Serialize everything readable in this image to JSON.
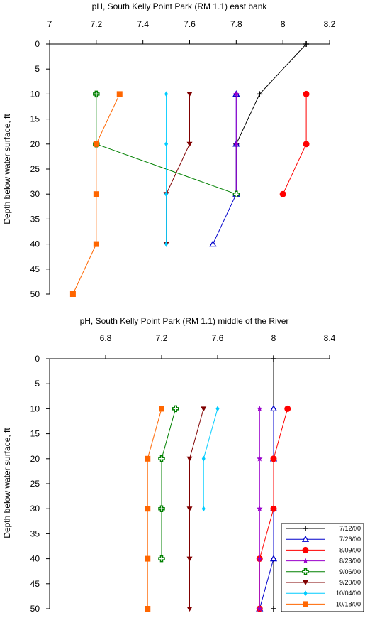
{
  "chart_data": [
    {
      "type": "line",
      "title": "pH, South Kelly Point Park (RM 1.1) east bank",
      "xlabel": "",
      "ylabel": "Depth below water surface, ft",
      "xlim": [
        7,
        8.2
      ],
      "ylim": [
        0,
        50
      ],
      "x_ticks": [
        "7",
        "7.2",
        "7.4",
        "7.6",
        "7.8",
        "8",
        "8.2"
      ],
      "x_tick_values": [
        7,
        7.2,
        7.4,
        7.6,
        7.8,
        8,
        8.2
      ],
      "y_ticks": [
        "0",
        "5",
        "10",
        "15",
        "20",
        "25",
        "30",
        "35",
        "40",
        "45",
        "50"
      ],
      "y_tick_values": [
        0,
        5,
        10,
        15,
        20,
        25,
        30,
        35,
        40,
        45,
        50
      ],
      "grid": false,
      "series": [
        {
          "name": "7/12/00",
          "color": "#000000",
          "marker": "plus",
          "x": [
            8.1,
            7.9,
            7.8,
            7.8
          ],
          "y": [
            0,
            10,
            20,
            30
          ]
        },
        {
          "name": "7/26/00",
          "color": "#0000cc",
          "marker": "triangle",
          "x": [
            7.8,
            7.8,
            7.8,
            7.7
          ],
          "y": [
            10,
            20,
            30,
            40
          ]
        },
        {
          "name": "8/09/00",
          "color": "#ff0000",
          "marker": "circle",
          "x": [
            8.1,
            8.1,
            8.0
          ],
          "y": [
            10,
            20,
            30
          ]
        },
        {
          "name": "8/23/00",
          "color": "#9900cc",
          "marker": "star",
          "x": [
            7.8,
            7.8,
            7.8
          ],
          "y": [
            10,
            20,
            30
          ]
        },
        {
          "name": "9/06/00",
          "color": "#008000",
          "marker": "cross",
          "x": [
            7.2,
            7.2,
            7.8
          ],
          "y": [
            10,
            20,
            30
          ]
        },
        {
          "name": "9/20/00",
          "color": "#800000",
          "marker": "tri_down",
          "x": [
            7.6,
            7.6,
            7.5,
            7.5
          ],
          "y": [
            10,
            20,
            30,
            40
          ]
        },
        {
          "name": "10/04/00",
          "color": "#00ccff",
          "marker": "diamond",
          "x": [
            7.5,
            7.5,
            7.5,
            7.5
          ],
          "y": [
            10,
            20,
            30,
            40
          ]
        },
        {
          "name": "10/18/00",
          "color": "#ff6600",
          "marker": "square",
          "x": [
            7.3,
            7.2,
            7.2,
            7.2,
            7.1
          ],
          "y": [
            10,
            20,
            30,
            40,
            50
          ]
        }
      ]
    },
    {
      "type": "line",
      "title": "pH, South Kelly Point Park (RM 1.1) middle of the River",
      "xlabel": "",
      "ylabel": "Depth below water surface, ft",
      "xlim": [
        6.4,
        8.4
      ],
      "ylim": [
        0,
        50
      ],
      "x_ticks": [
        "6.8",
        "7.2",
        "7.6",
        "8",
        "8.4"
      ],
      "x_tick_values": [
        6.8,
        7.2,
        7.6,
        8,
        8.4
      ],
      "y_ticks": [
        "0",
        "5",
        "10",
        "15",
        "20",
        "25",
        "30",
        "35",
        "40",
        "45",
        "50"
      ],
      "y_tick_values": [
        0,
        5,
        10,
        15,
        20,
        25,
        30,
        35,
        40,
        45,
        50
      ],
      "grid": false,
      "legend": "bottom-right",
      "series": [
        {
          "name": "7/12/00",
          "color": "#000000",
          "marker": "plus",
          "x": [
            8.0,
            8.0,
            8.0,
            8.0,
            8.0,
            8.0
          ],
          "y": [
            0,
            10,
            20,
            30,
            40,
            50
          ]
        },
        {
          "name": "7/26/00",
          "color": "#0000cc",
          "marker": "triangle",
          "x": [
            8.0,
            8.0,
            8.0,
            8.0,
            7.9
          ],
          "y": [
            10,
            20,
            30,
            40,
            50
          ]
        },
        {
          "name": "8/09/00",
          "color": "#ff0000",
          "marker": "circle",
          "x": [
            8.1,
            8.0,
            8.0,
            7.9,
            7.9
          ],
          "y": [
            10,
            20,
            30,
            40,
            50
          ]
        },
        {
          "name": "8/23/00",
          "color": "#9900cc",
          "marker": "star",
          "x": [
            7.9,
            7.9,
            7.9,
            7.9,
            7.9
          ],
          "y": [
            10,
            20,
            30,
            40,
            50
          ]
        },
        {
          "name": "9/06/00",
          "color": "#008000",
          "marker": "cross",
          "x": [
            7.3,
            7.2,
            7.2,
            7.2
          ],
          "y": [
            10,
            20,
            30,
            40
          ]
        },
        {
          "name": "9/20/00",
          "color": "#800000",
          "marker": "tri_down",
          "x": [
            7.5,
            7.4,
            7.4,
            7.4,
            7.4
          ],
          "y": [
            10,
            20,
            30,
            40,
            50
          ]
        },
        {
          "name": "10/04/00",
          "color": "#00ccff",
          "marker": "diamond",
          "x": [
            7.6,
            7.5,
            7.5
          ],
          "y": [
            10,
            20,
            30
          ]
        },
        {
          "name": "10/18/00",
          "color": "#ff6600",
          "marker": "square",
          "x": [
            7.2,
            7.1,
            7.1,
            7.1,
            7.1
          ],
          "y": [
            10,
            20,
            30,
            40,
            50
          ]
        }
      ]
    }
  ]
}
